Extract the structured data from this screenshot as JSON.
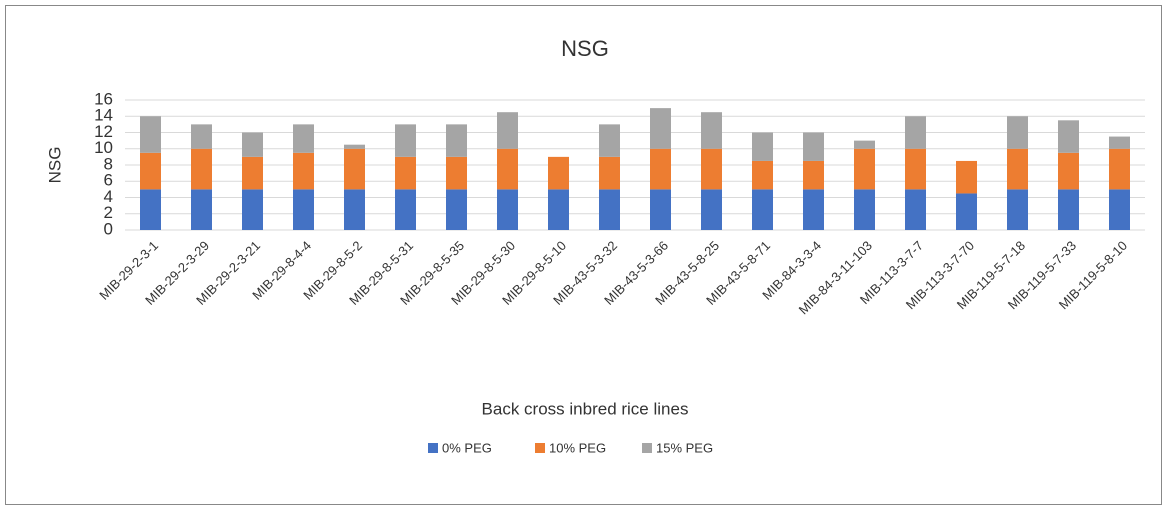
{
  "chart_data": {
    "type": "stacked_bar",
    "title": "NSG",
    "x_label": "Back cross inbred rice lines",
    "y_label": "NSG",
    "categories": [
      "MIB-29-2-3-1",
      "MIB-29-2-3-29",
      "MIB-29-2-3-21",
      "MIB-29-8-4-4",
      "MIB-29-8-5-2",
      "MIB-29-8-5-31",
      "MIB-29-8-5-35",
      "MIB-29-8-5-30",
      "MIB-29-8-5-10",
      "MIB-43-5-3-32",
      "MIB-43-5-3-66",
      "MIB-43-5-8-25",
      "MIB-43-5-8-71",
      "MIB-84-3-3-4",
      "MIB-84-3-11-103",
      "MIB-113-3-7-7",
      "MIB-113-3-7-70",
      "MIB-119-5-7-18",
      "MIB-119-5-7-33",
      "MIB-119-5-8-10"
    ],
    "series": [
      {
        "name": "0% PEG",
        "color": "#4472c4",
        "values": [
          5,
          5,
          5,
          5,
          5,
          5,
          5,
          5,
          5,
          5,
          5,
          5,
          5,
          5,
          5,
          5,
          4.5,
          5,
          5,
          5
        ]
      },
      {
        "name": "10% PEG",
        "color": "#ed7d31",
        "values": [
          4.5,
          5,
          4,
          4.5,
          5,
          4,
          4,
          5,
          4,
          4,
          5,
          5,
          3.5,
          3.5,
          5,
          5,
          4,
          5,
          4.5,
          5
        ]
      },
      {
        "name": "15% PEG",
        "color": "#a5a5a5",
        "values": [
          4.5,
          3,
          3,
          3.5,
          0.5,
          4,
          4,
          4.5,
          0,
          4,
          5,
          4.5,
          3.5,
          3.5,
          1,
          4,
          0,
          4,
          4,
          1.5
        ]
      }
    ],
    "ylim": [
      0,
      16
    ],
    "yticks": [
      0,
      2,
      4,
      6,
      8,
      10,
      12,
      14,
      16
    ],
    "grid": true,
    "legend": "bottom"
  }
}
